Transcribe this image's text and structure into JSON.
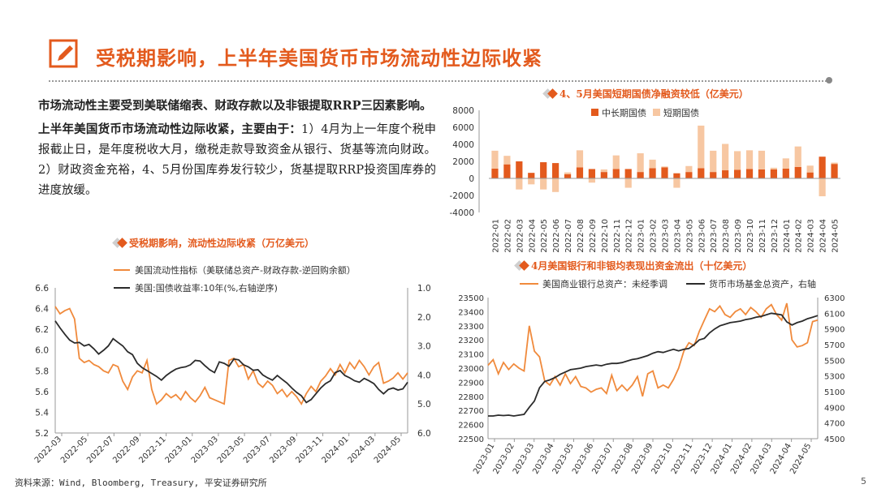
{
  "header": {
    "title": "受税期影响，上半年美国货币市场流动性边际收紧"
  },
  "intro": {
    "para1": "市场流动性主要受到美联储缩表、财政存款以及非银提取RRP三因素影响。",
    "para2_bold": "上半年美国货币市场流动性边际收紧，主要由于：",
    "para2_rest": "1）4月为上一年度个税申报截止日，是年度税收大月，缴税走款导致资金从银行、货基等流向财政。2）财政资金充裕，4、5月份国库券发行较少，货基提取RRP投资国库券的进度放缓。"
  },
  "footer": {
    "source": "资料来源：Wind, Bloomberg, Treasury, 平安证券研究所",
    "page": "5"
  },
  "colors": {
    "accent": "#e35a1d",
    "orange": "#f08a3c",
    "light": "#f7c7a2",
    "dark": "#2b2b2b"
  },
  "chart_data": [
    {
      "id": "liquidity",
      "type": "line",
      "title": "受税期影响，流动性边际收紧（万亿美元）",
      "legend": [
        "美国流动性指标（美联储总资产-财政存款-逆回购余额）",
        "美国:国债收益率:10年(%,右轴逆序)"
      ],
      "ylim": [
        5.2,
        6.6
      ],
      "y2lim": [
        1.0,
        6.0
      ],
      "y2_inverted": true,
      "yticks": [
        "6.6",
        "6.4",
        "6.2",
        "6.0",
        "5.8",
        "5.6",
        "5.4",
        "5.2"
      ],
      "y2ticks": [
        "1.0",
        "2.0",
        "3.0",
        "4.0",
        "5.0",
        "6.0"
      ],
      "xticks": [
        "2022-03",
        "2022-05",
        "2022-07",
        "2022-09",
        "2022-11",
        "2023-01",
        "2023-03",
        "2023-05",
        "2023-07",
        "2023-09",
        "2023-11",
        "2024-01",
        "2024-03",
        "2024-05"
      ],
      "series": [
        {
          "name": "美国流动性指标",
          "axis": "left",
          "values": [
            6.42,
            6.35,
            6.38,
            6.4,
            6.3,
            5.92,
            5.88,
            5.9,
            5.86,
            5.84,
            5.8,
            5.78,
            5.86,
            5.84,
            5.7,
            5.62,
            5.74,
            5.8,
            5.78,
            5.9,
            5.62,
            5.48,
            5.52,
            5.58,
            5.54,
            5.57,
            5.52,
            5.6,
            5.54,
            5.5,
            5.56,
            5.64,
            5.54,
            5.52,
            5.5,
            5.48,
            5.9,
            5.92,
            5.84,
            5.86,
            5.72,
            5.8,
            5.68,
            5.64,
            5.7,
            5.66,
            5.58,
            5.62,
            5.55,
            5.6,
            5.55,
            5.48,
            5.58,
            5.65,
            5.6,
            5.7,
            5.75,
            5.82,
            5.76,
            5.86,
            5.78,
            5.88,
            5.82,
            5.9,
            5.84,
            5.76,
            5.84,
            5.88,
            5.68,
            5.7,
            5.73,
            5.78,
            5.72,
            5.78
          ]
        },
        {
          "name": "美国:国债收益率:10年",
          "axis": "right",
          "values": [
            2.14,
            2.38,
            2.6,
            2.8,
            2.9,
            2.88,
            3.0,
            2.95,
            3.1,
            3.28,
            3.15,
            3.0,
            2.75,
            2.88,
            3.0,
            3.2,
            3.3,
            3.6,
            3.75,
            3.85,
            3.95,
            4.05,
            4.18,
            4.02,
            3.9,
            3.8,
            3.75,
            3.72,
            3.65,
            3.5,
            3.52,
            3.68,
            3.82,
            3.92,
            3.55,
            3.6,
            3.7,
            3.45,
            3.48,
            3.65,
            3.72,
            3.84,
            3.82,
            4.0,
            4.1,
            4.18,
            4.02,
            4.15,
            4.28,
            4.45,
            4.6,
            4.72,
            4.95,
            4.85,
            4.65,
            4.45,
            4.3,
            4.2,
            3.92,
            3.85,
            4.02,
            4.1,
            4.2,
            4.25,
            4.12,
            4.2,
            4.3,
            4.5,
            4.65,
            4.5,
            4.45,
            4.52,
            4.48,
            4.25
          ]
        }
      ]
    },
    {
      "id": "treasury-net-financing",
      "type": "bar",
      "title": "4、5月美国短期国债净融资较低（亿美元）",
      "legend": [
        "中长期国债",
        "短期国债"
      ],
      "ylim": [
        -4000,
        8000
      ],
      "yticks": [
        "8000",
        "6000",
        "4000",
        "2000",
        "0",
        "-2000",
        "-4000"
      ],
      "categories": [
        "2022-01",
        "2022-02",
        "2022-03",
        "2022-04",
        "2022-05",
        "2022-06",
        "2022-07",
        "2022-08",
        "2022-09",
        "2022-10",
        "2022-11",
        "2022-12",
        "2023-01",
        "2023-02",
        "2023-03",
        "2023-04",
        "2023-05",
        "2023-06",
        "2023-07",
        "2023-08",
        "2023-09",
        "2023-10",
        "2023-11",
        "2023-12",
        "2024-01",
        "2024-02",
        "2024-03",
        "2024-04",
        "2024-05"
      ],
      "series": [
        {
          "name": "中长期国债",
          "values": [
            1150,
            1650,
            2000,
            650,
            1900,
            1800,
            500,
            1300,
            1100,
            750,
            1100,
            1100,
            750,
            1200,
            1300,
            600,
            750,
            1200,
            750,
            950,
            1000,
            1100,
            1050,
            1050,
            1150,
            1350,
            700,
            2550,
            1700
          ]
        },
        {
          "name": "短期国债",
          "values": [
            2100,
            1000,
            -1300,
            -700,
            -1300,
            -1600,
            200,
            2000,
            -500,
            300,
            1600,
            -1100,
            2200,
            1000,
            100,
            -1100,
            700,
            5000,
            2500,
            3100,
            2200,
            2200,
            2200,
            200,
            1200,
            2400,
            800,
            -2100,
            150
          ]
        }
      ]
    },
    {
      "id": "bank-mmf-assets",
      "type": "line",
      "title": "4月美国银行和非银均表现出资金流出（十亿美元）",
      "legend": [
        "美国商业银行总资产：未经季调",
        "货币市场基金总资产，右轴"
      ],
      "ylim": [
        22500,
        23500
      ],
      "y2lim": [
        4500,
        6300
      ],
      "yticks": [
        "23500",
        "23400",
        "23300",
        "23200",
        "23100",
        "23000",
        "22900",
        "22800",
        "22700",
        "22600",
        "22500"
      ],
      "y2ticks": [
        "6300",
        "6100",
        "5900",
        "5700",
        "5500",
        "5300",
        "5100",
        "4900",
        "4700",
        "4500"
      ],
      "xticks": [
        "2023-01",
        "2023-02",
        "2023-03",
        "2023-04",
        "2023-05",
        "2023-06",
        "2023-07",
        "2023-08",
        "2023-09",
        "2023-10",
        "2023-11",
        "2023-12",
        "2024-01",
        "2024-02",
        "2024-03",
        "2024-04",
        "2024-05"
      ],
      "series": [
        {
          "name": "美国商业银行总资产",
          "axis": "left",
          "values": [
            23020,
            23060,
            22960,
            23040,
            22990,
            23030,
            23000,
            22980,
            23300,
            23120,
            23080,
            22910,
            22880,
            22940,
            22880,
            22960,
            22890,
            22940,
            22870,
            22860,
            22830,
            22850,
            22860,
            22820,
            22950,
            22840,
            22880,
            22840,
            22880,
            22940,
            22800,
            22960,
            22980,
            22860,
            22880,
            22860,
            22920,
            23000,
            23120,
            23180,
            23160,
            23260,
            23340,
            23420,
            23400,
            23440,
            23380,
            23360,
            23400,
            23420,
            23380,
            23430,
            23400,
            23360,
            23420,
            23450,
            23380,
            23340,
            23460,
            23200,
            23150,
            23160,
            23180,
            23330,
            23340
          ]
        },
        {
          "name": "货币市场基金总资产",
          "axis": "right",
          "values": [
            4790,
            4790,
            4800,
            4795,
            4800,
            4790,
            4800,
            4810,
            4900,
            4980,
            5150,
            5230,
            5250,
            5280,
            5320,
            5350,
            5380,
            5390,
            5400,
            5420,
            5430,
            5440,
            5430,
            5450,
            5460,
            5460,
            5470,
            5490,
            5510,
            5520,
            5540,
            5560,
            5590,
            5610,
            5600,
            5620,
            5640,
            5620,
            5640,
            5650,
            5700,
            5760,
            5780,
            5850,
            5900,
            5940,
            5960,
            5980,
            5990,
            6000,
            6020,
            6030,
            6050,
            6060,
            6080,
            6100,
            6090,
            6080,
            5990,
            5950,
            5980,
            6000,
            6030,
            6050,
            6070
          ]
        }
      ]
    }
  ]
}
